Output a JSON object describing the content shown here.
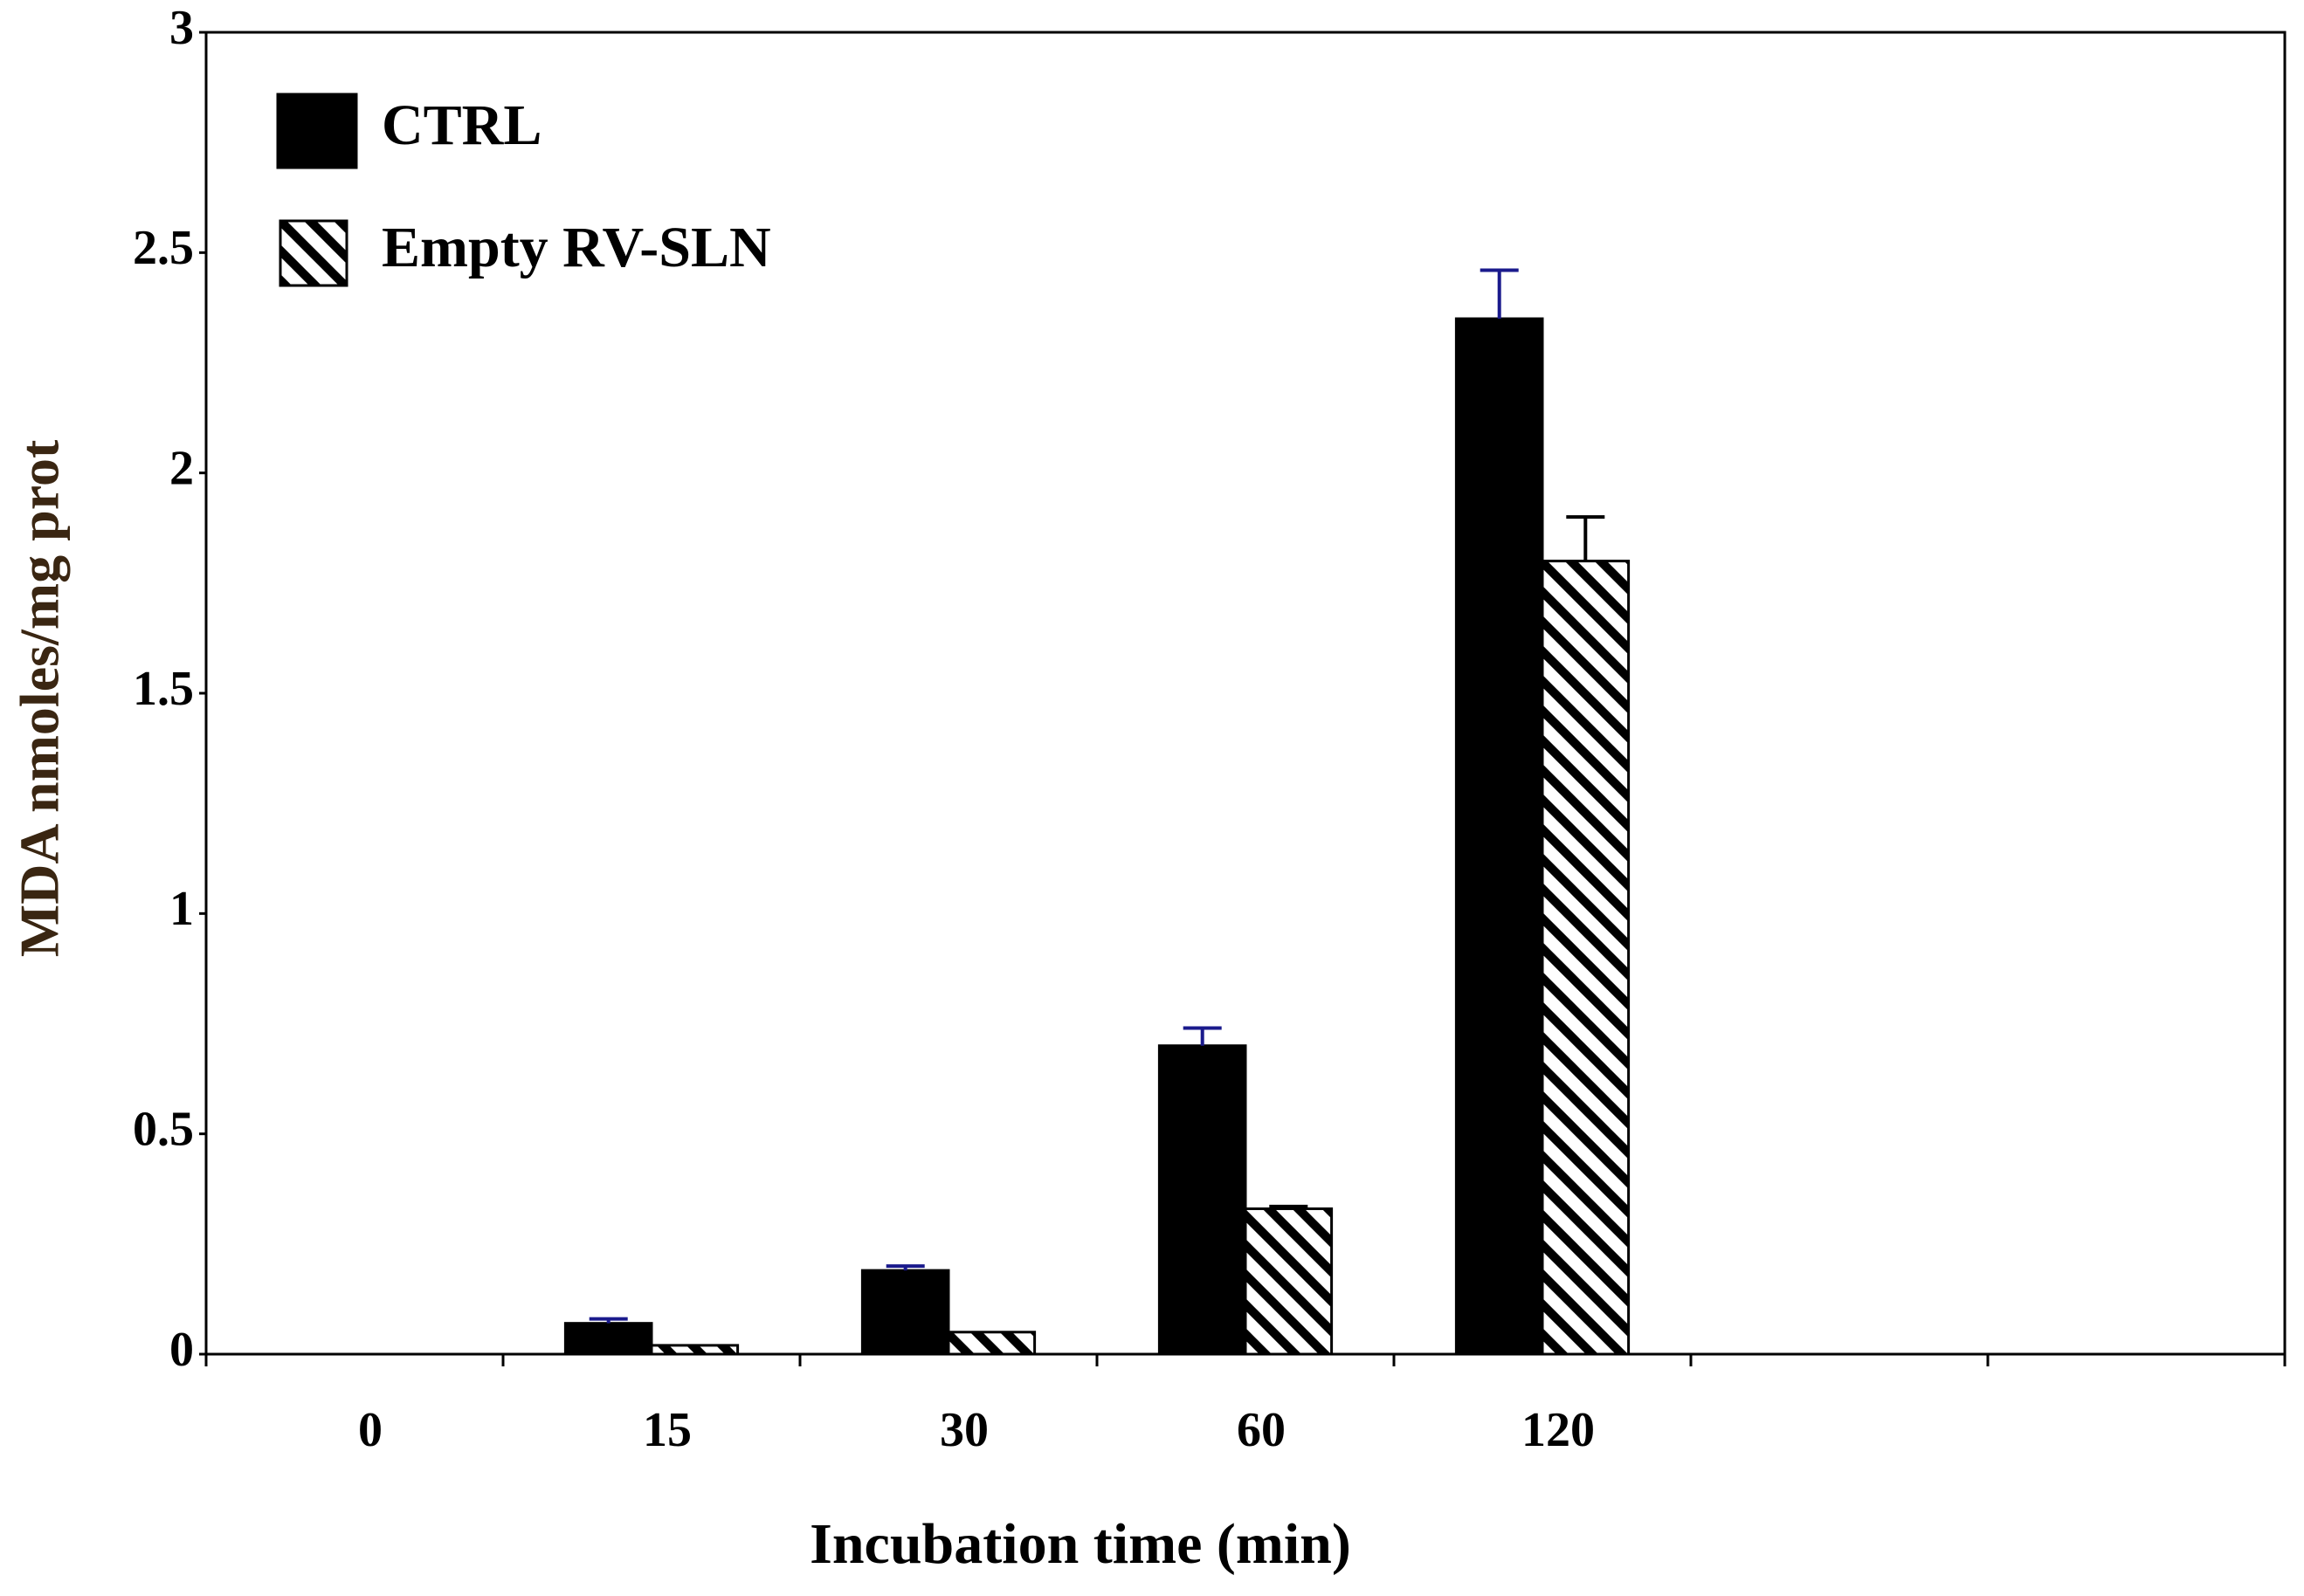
{
  "chart_data": {
    "type": "bar",
    "x_label": "Incubation time (min)",
    "y_label": "MDA nmoles/mg prot",
    "categories": [
      "0",
      "15",
      "30",
      "60",
      "120",
      null,
      null
    ],
    "series": [
      {
        "name": "CTRL",
        "color": "#000000",
        "pattern": "solid",
        "error_color": "#1a1a8c",
        "values": [
          0,
          0.07,
          0.19,
          0.7,
          2.35,
          null,
          null
        ],
        "errors": [
          0,
          0.01,
          0.01,
          0.04,
          0.11,
          null,
          null
        ]
      },
      {
        "name": "Empty RV-SLN",
        "color": "#000000",
        "pattern": "hatch",
        "error_color": "#000000",
        "values": [
          0,
          0.02,
          0.05,
          0.33,
          1.8,
          null,
          null
        ],
        "errors": [
          0,
          0,
          0,
          0.005,
          0.1,
          null,
          null
        ]
      }
    ],
    "ylim": [
      0,
      3
    ],
    "yticks": [
      0,
      0.5,
      1,
      1.5,
      2,
      2.5,
      3
    ],
    "grid": false,
    "legend": "upper left"
  }
}
